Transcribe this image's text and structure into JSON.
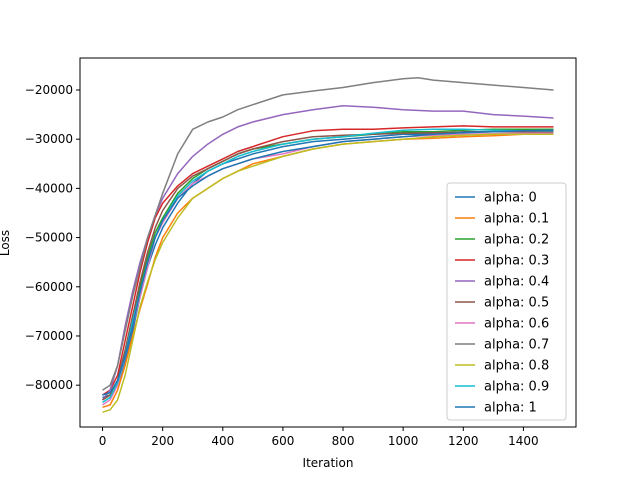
{
  "chart_data": {
    "type": "line",
    "title": "",
    "xlabel": "Iteration",
    "ylabel": "Loss",
    "xlim": [
      -75,
      1575
    ],
    "ylim": [
      -88500,
      -13500
    ],
    "xticks": [
      0,
      200,
      400,
      600,
      800,
      1000,
      1200,
      1400
    ],
    "yticks": [
      -80000,
      -70000,
      -60000,
      -50000,
      -40000,
      -30000,
      -20000
    ],
    "xtick_labels": [
      "0",
      "200",
      "400",
      "600",
      "800",
      "1000",
      "1200",
      "1400"
    ],
    "ytick_labels": [
      "−80000",
      "−70000",
      "−60000",
      "−50000",
      "−40000",
      "−30000",
      "−20000"
    ],
    "grid": false,
    "legend": "lower-right",
    "series": [
      {
        "name": "alpha: 0",
        "color": "#1f77b4",
        "x": [
          0,
          25,
          50,
          75,
          100,
          125,
          150,
          175,
          200,
          250,
          300,
          350,
          400,
          450,
          500,
          600,
          700,
          800,
          900,
          1000,
          1100,
          1200,
          1300,
          1400,
          1500
        ],
        "y": [
          -82500,
          -82000,
          -80000,
          -75000,
          -69000,
          -62000,
          -56000,
          -51500,
          -48000,
          -43000,
          -39000,
          -36500,
          -35000,
          -34000,
          -33000,
          -31500,
          -30500,
          -30000,
          -29500,
          -29000,
          -29000,
          -28500,
          -28500,
          -28300,
          -28200
        ]
      },
      {
        "name": "alpha: 0.1",
        "color": "#ff7f0e",
        "x": [
          0,
          25,
          50,
          75,
          100,
          125,
          150,
          175,
          200,
          250,
          300,
          350,
          400,
          450,
          500,
          600,
          700,
          800,
          900,
          1000,
          1100,
          1200,
          1300,
          1400,
          1500
        ],
        "y": [
          -84500,
          -84000,
          -81000,
          -76000,
          -70000,
          -64500,
          -59500,
          -54000,
          -50000,
          -45000,
          -42000,
          -40000,
          -38000,
          -36500,
          -35000,
          -33500,
          -32000,
          -31000,
          -30500,
          -30000,
          -29800,
          -29500,
          -29300,
          -29000,
          -29000
        ]
      },
      {
        "name": "alpha: 0.2",
        "color": "#2ca02c",
        "x": [
          0,
          25,
          50,
          75,
          100,
          125,
          150,
          175,
          200,
          250,
          300,
          350,
          400,
          450,
          500,
          600,
          700,
          800,
          900,
          1000,
          1100,
          1200,
          1300,
          1400,
          1500
        ],
        "y": [
          -83000,
          -82000,
          -79000,
          -73000,
          -66000,
          -60000,
          -54000,
          -49000,
          -46000,
          -41000,
          -38000,
          -36000,
          -34500,
          -33000,
          -32000,
          -31000,
          -30000,
          -29500,
          -29000,
          -28500,
          -28500,
          -28200,
          -28000,
          -28000,
          -28000
        ]
      },
      {
        "name": "alpha: 0.3",
        "color": "#d62728",
        "x": [
          0,
          25,
          50,
          75,
          100,
          125,
          150,
          175,
          200,
          250,
          300,
          350,
          400,
          450,
          500,
          600,
          700,
          800,
          900,
          1000,
          1100,
          1200,
          1300,
          1400,
          1500
        ],
        "y": [
          -82000,
          -81000,
          -78000,
          -71000,
          -64000,
          -57000,
          -51000,
          -46000,
          -43000,
          -39500,
          -37000,
          -35500,
          -34000,
          -32500,
          -31500,
          -29500,
          -28300,
          -28000,
          -28000,
          -27700,
          -27500,
          -27300,
          -27500,
          -27500,
          -27500
        ]
      },
      {
        "name": "alpha: 0.4",
        "color": "#9467bd",
        "x": [
          0,
          25,
          50,
          75,
          100,
          125,
          150,
          175,
          200,
          250,
          300,
          350,
          400,
          450,
          500,
          600,
          700,
          800,
          900,
          1000,
          1100,
          1200,
          1300,
          1400,
          1500
        ],
        "y": [
          -83000,
          -81000,
          -76000,
          -68000,
          -61000,
          -55000,
          -50000,
          -45500,
          -42000,
          -37000,
          -33500,
          -31000,
          -29000,
          -27500,
          -26500,
          -25000,
          -24000,
          -23200,
          -23500,
          -24000,
          -24300,
          -24300,
          -25000,
          -25300,
          -25700
        ]
      },
      {
        "name": "alpha: 0.5",
        "color": "#8c564b",
        "x": [
          0,
          25,
          50,
          75,
          100,
          125,
          150,
          175,
          200,
          250,
          300,
          350,
          400,
          450,
          500,
          600,
          700,
          800,
          900,
          1000,
          1100,
          1200,
          1300,
          1400,
          1500
        ],
        "y": [
          -83000,
          -82000,
          -79000,
          -73000,
          -66000,
          -59000,
          -53000,
          -48000,
          -44500,
          -40000,
          -37500,
          -36000,
          -34500,
          -33000,
          -32000,
          -30500,
          -29500,
          -29200,
          -29000,
          -28800,
          -28700,
          -28600,
          -28500,
          -28500,
          -28500
        ]
      },
      {
        "name": "alpha: 0.6",
        "color": "#e377c2",
        "x": [
          0,
          25,
          50,
          75,
          100,
          125,
          150,
          175,
          200,
          250,
          300,
          350,
          400,
          450,
          500,
          600,
          700,
          800,
          900,
          1000,
          1100,
          1200,
          1300,
          1400,
          1500
        ],
        "y": [
          -84000,
          -83000,
          -80000,
          -74000,
          -68000,
          -62000,
          -56000,
          -50000,
          -47000,
          -42000,
          -39000,
          -37500,
          -36000,
          -35000,
          -34000,
          -33000,
          -31500,
          -30500,
          -30000,
          -29500,
          -29200,
          -29000,
          -28900,
          -28800,
          -28800
        ]
      },
      {
        "name": "alpha: 0.7",
        "color": "#7f7f7f",
        "x": [
          0,
          25,
          50,
          75,
          100,
          125,
          150,
          175,
          200,
          250,
          300,
          350,
          400,
          450,
          500,
          600,
          700,
          800,
          900,
          1000,
          1050,
          1100,
          1200,
          1300,
          1400,
          1500
        ],
        "y": [
          -81000,
          -80000,
          -76000,
          -69000,
          -62000,
          -56000,
          -50000,
          -45500,
          -41000,
          -33000,
          -28000,
          -26500,
          -25500,
          -24000,
          -23000,
          -21000,
          -20200,
          -19500,
          -18500,
          -17700,
          -17500,
          -18000,
          -18500,
          -19000,
          -19500,
          -20000
        ]
      },
      {
        "name": "alpha: 0.8",
        "color": "#bcbd22",
        "x": [
          0,
          25,
          50,
          75,
          100,
          125,
          150,
          175,
          200,
          250,
          300,
          350,
          400,
          450,
          500,
          600,
          700,
          800,
          900,
          1000,
          1100,
          1200,
          1300,
          1400,
          1500
        ],
        "y": [
          -85500,
          -85000,
          -83000,
          -78000,
          -71000,
          -64000,
          -59000,
          -54500,
          -51000,
          -46000,
          -42000,
          -40000,
          -38000,
          -36500,
          -35500,
          -33500,
          -32000,
          -31000,
          -30500,
          -30000,
          -29500,
          -29200,
          -29000,
          -29000,
          -29000
        ]
      },
      {
        "name": "alpha: 0.9",
        "color": "#17becf",
        "x": [
          0,
          25,
          50,
          75,
          100,
          125,
          150,
          175,
          200,
          250,
          300,
          350,
          400,
          450,
          500,
          600,
          700,
          800,
          900,
          1000,
          1100,
          1200,
          1300,
          1400,
          1500
        ],
        "y": [
          -83500,
          -82500,
          -79500,
          -74000,
          -67000,
          -61000,
          -55000,
          -50000,
          -46500,
          -41500,
          -38500,
          -36500,
          -35000,
          -33500,
          -32500,
          -31000,
          -30000,
          -29500,
          -28800,
          -28200,
          -28000,
          -28000,
          -28200,
          -28300,
          -28300
        ]
      },
      {
        "name": "alpha: 1",
        "color": "#1f77b4",
        "x": [
          0,
          25,
          50,
          75,
          100,
          125,
          150,
          175,
          200,
          250,
          300,
          350,
          400,
          450,
          500,
          600,
          700,
          800,
          900,
          1000,
          1100,
          1200,
          1300,
          1400,
          1500
        ],
        "y": [
          -82000,
          -81500,
          -79000,
          -74000,
          -68000,
          -61000,
          -55000,
          -50000,
          -46500,
          -42000,
          -39500,
          -37500,
          -36000,
          -35000,
          -34000,
          -32500,
          -31500,
          -30500,
          -30000,
          -29500,
          -29000,
          -28700,
          -28500,
          -28300,
          -28200
        ]
      }
    ]
  }
}
